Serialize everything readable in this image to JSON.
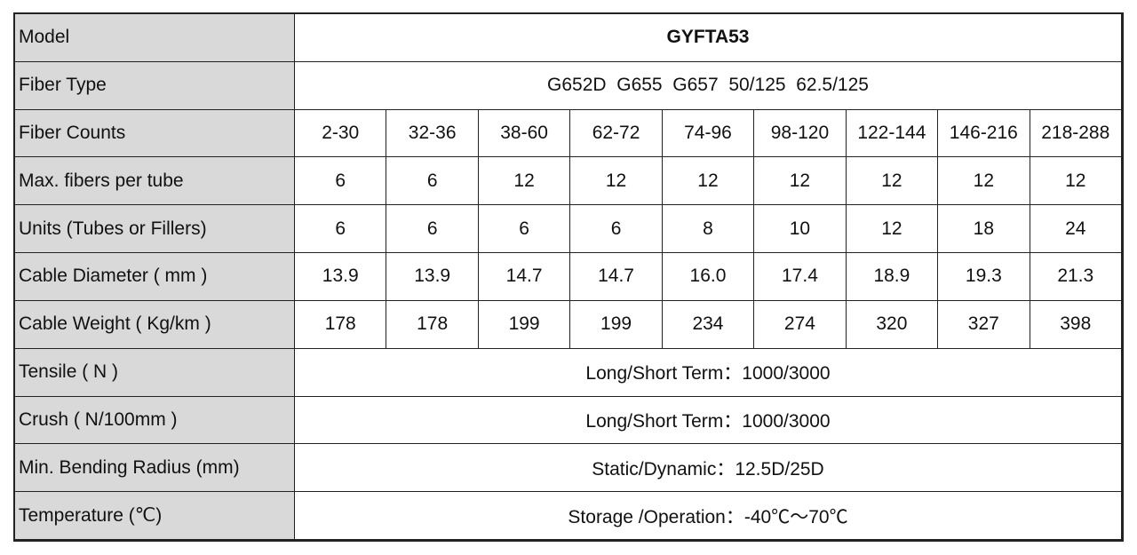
{
  "table": {
    "rows": [
      {
        "label": "Model",
        "value": "GYFTA53"
      },
      {
        "label": "Fiber Type",
        "value": "G652D  G655  G657  50/125  62.5/125"
      },
      {
        "label": "Fiber Counts",
        "cells": [
          "2-30",
          "32-36",
          "38-60",
          "62-72",
          "74-96",
          "98-120",
          "122-144",
          "146-216",
          "218-288"
        ]
      },
      {
        "label": "Max. fibers per tube",
        "cells": [
          "6",
          "6",
          "12",
          "12",
          "12",
          "12",
          "12",
          "12",
          "12"
        ]
      },
      {
        "label": "Units (Tubes or Fillers)",
        "cells": [
          "6",
          "6",
          "6",
          "6",
          "8",
          "10",
          "12",
          "18",
          "24"
        ]
      },
      {
        "label": "Cable Diameter ( mm )",
        "cells": [
          "13.9",
          "13.9",
          "14.7",
          "14.7",
          "16.0",
          "17.4",
          "18.9",
          "19.3",
          "21.3"
        ]
      },
      {
        "label": "Cable Weight ( Kg/km )",
        "cells": [
          "178",
          "178",
          "199",
          "199",
          "234",
          "274",
          "320",
          "327",
          "398"
        ]
      },
      {
        "label": "Tensile ( N )",
        "value": "Long/Short Term：1000/3000"
      },
      {
        "label": "Crush ( N/100mm )",
        "value": "Long/Short Term：1000/3000"
      },
      {
        "label": "Min. Bending Radius (mm)",
        "value": "Static/Dynamic：12.5D/25D"
      },
      {
        "label": "Temperature (℃)",
        "value": "Storage /Operation：-40℃～70℃"
      }
    ]
  }
}
